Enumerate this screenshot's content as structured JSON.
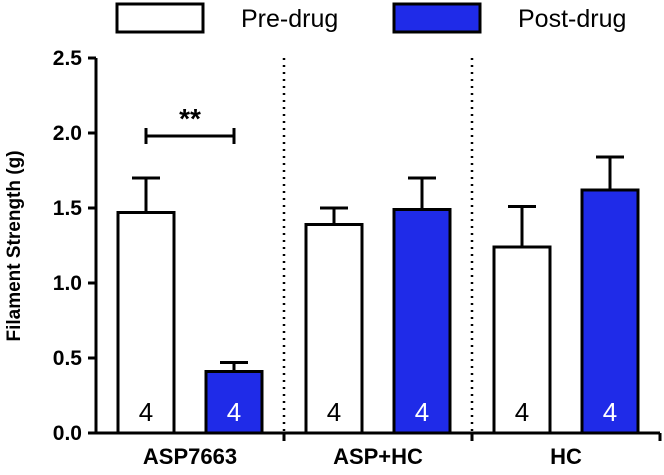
{
  "chart_data": {
    "type": "bar",
    "title": "",
    "xlabel": "",
    "ylabel": "Filament Strength (g)",
    "ylim": [
      0,
      2.5
    ],
    "yticks": [
      "0.0",
      "0.5",
      "1.0",
      "1.5",
      "2.0",
      "2.5"
    ],
    "categories": [
      "ASP7663",
      "ASP+HC",
      "HC"
    ],
    "series": [
      {
        "name": "Pre-drug",
        "color": "#ffffff",
        "values": [
          1.47,
          1.39,
          1.24
        ],
        "errors": [
          0.23,
          0.11,
          0.27
        ],
        "n_labels": [
          "4",
          "4",
          "4"
        ]
      },
      {
        "name": "Post-drug",
        "color": "#1f2be8",
        "values": [
          0.41,
          1.49,
          1.62
        ],
        "errors": [
          0.06,
          0.21,
          0.22
        ],
        "n_labels": [
          "4",
          "4",
          "4"
        ]
      }
    ],
    "legend": {
      "position": "top"
    },
    "annotations": [
      {
        "text": "**",
        "category": "ASP7663",
        "comparison": [
          "Pre-drug",
          "Post-drug"
        ],
        "y": 1.98
      }
    ],
    "group_separators": "dotted"
  }
}
